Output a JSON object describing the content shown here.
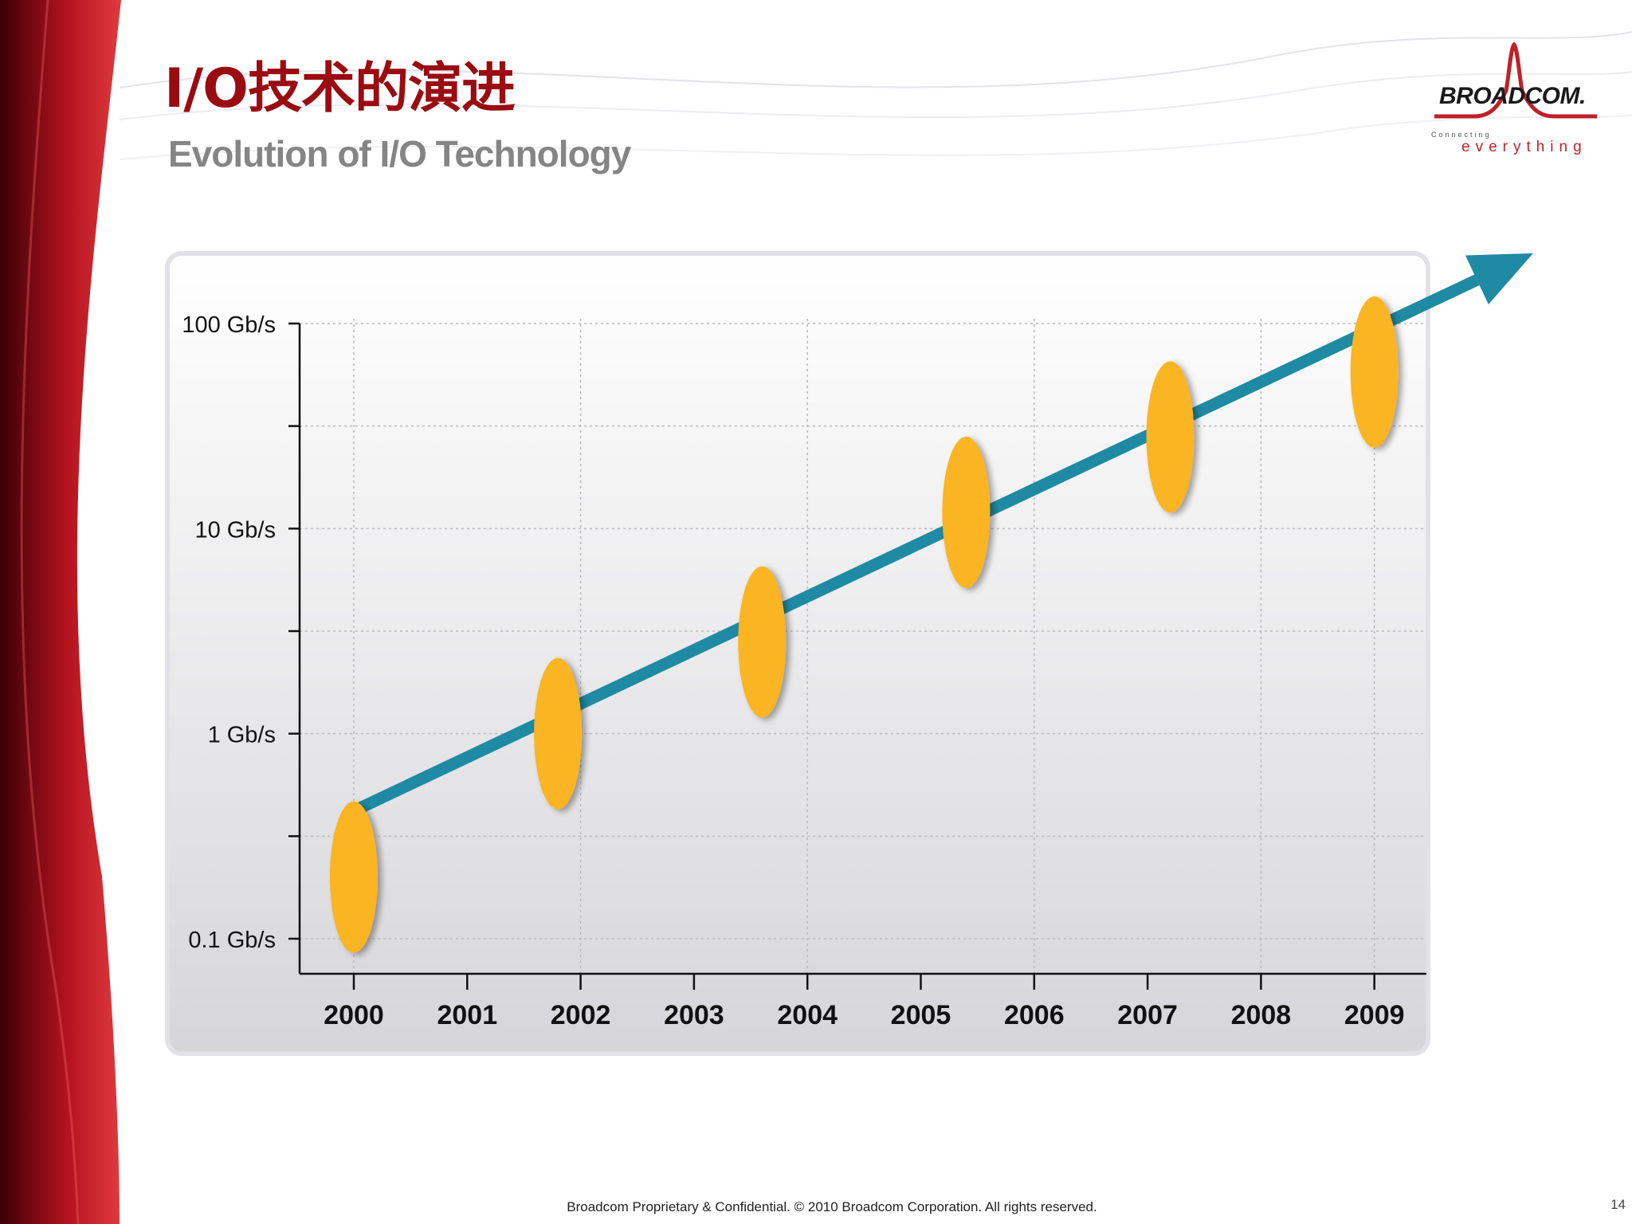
{
  "title": {
    "cn": "I/O技术的演进",
    "en": "Evolution of I/O Technology"
  },
  "logo": {
    "name": "BROADCOM.",
    "tagline_top": "Connecting",
    "tagline_bottom": "everything"
  },
  "footer": {
    "text": "Broadcom Proprietary & Confidential.  © 2010 Broadcom Corporation.  All rights reserved.",
    "page_number": "14"
  },
  "colors": {
    "title": "#9a0c12",
    "subtitle": "#858585",
    "arrow": "#1f8aa3",
    "marker": "#fbb421",
    "background_swoosh": "#b3121e"
  },
  "chart_data": {
    "type": "scatter",
    "y_scale": "log",
    "x": [
      2000,
      2001,
      2002,
      2003,
      2004,
      2005,
      2006,
      2007,
      2008,
      2009
    ],
    "x_tick_labels": [
      "2000",
      "2001",
      "2002",
      "2003",
      "2004",
      "2005",
      "2006",
      "2007",
      "2008",
      "2009"
    ],
    "y_ticks": [
      0.1,
      1,
      10,
      100
    ],
    "y_tick_labels": [
      "0.1 Gb/s",
      "1 Gb/s",
      "10 Gb/s",
      "100 Gb/s"
    ],
    "y_unit": "Gb/s",
    "ylim": [
      0.07,
      130
    ],
    "xlim": [
      1999.5,
      2009.45
    ],
    "grid": true,
    "points": [
      {
        "x": 2000,
        "y": 0.2
      },
      {
        "x": 2001.8,
        "y": 1.0
      },
      {
        "x": 2003.6,
        "y": 2.8
      },
      {
        "x": 2005.4,
        "y": 12
      },
      {
        "x": 2007.2,
        "y": 28
      },
      {
        "x": 2009,
        "y": 58
      }
    ],
    "trend_arrow": {
      "from": {
        "x": 2000,
        "y": 0.42
      },
      "to": {
        "x": 2010.4,
        "y": 220
      }
    }
  }
}
